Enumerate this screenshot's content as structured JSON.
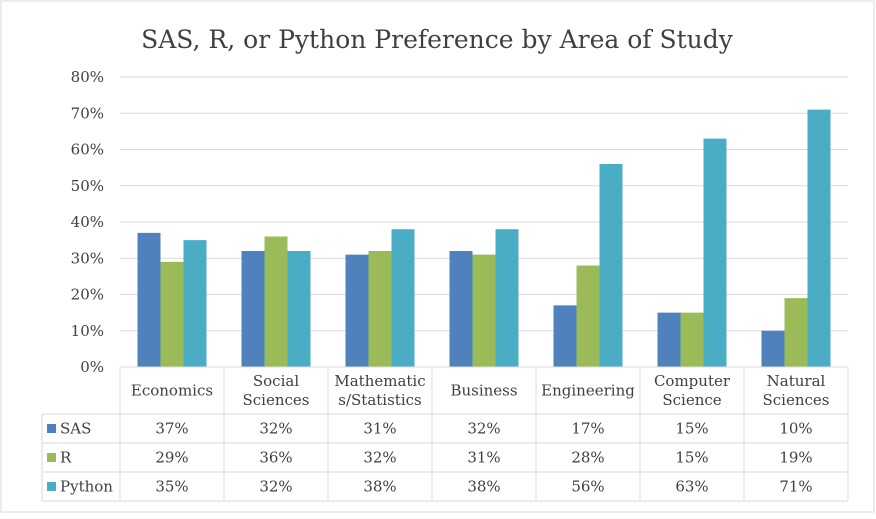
{
  "chart_data": {
    "type": "bar",
    "title": "SAS, R, or Python Preference by Area of Study",
    "categories": [
      "Economics",
      "Social Sciences",
      "Mathematics/Statistics",
      "Business",
      "Engineering",
      "Computer Science",
      "Natural Sciences"
    ],
    "category_lines": [
      [
        "Economics"
      ],
      [
        "Social",
        "Sciences"
      ],
      [
        "Mathematic",
        "s/Statistics"
      ],
      [
        "Business"
      ],
      [
        "Engineering"
      ],
      [
        "Computer",
        "Science"
      ],
      [
        "Natural",
        "Sciences"
      ]
    ],
    "series": [
      {
        "name": "SAS",
        "color": "#4f81bd",
        "values": [
          37,
          32,
          31,
          32,
          17,
          15,
          10
        ],
        "labels": [
          "37%",
          "32%",
          "31%",
          "32%",
          "17%",
          "15%",
          "10%"
        ]
      },
      {
        "name": "R",
        "color": "#9bbb59",
        "values": [
          29,
          36,
          32,
          31,
          28,
          15,
          19
        ],
        "labels": [
          "29%",
          "36%",
          "32%",
          "31%",
          "28%",
          "15%",
          "19%"
        ]
      },
      {
        "name": "Python",
        "color": "#4bacc6",
        "values": [
          35,
          32,
          38,
          38,
          56,
          63,
          71
        ],
        "labels": [
          "35%",
          "32%",
          "38%",
          "38%",
          "56%",
          "63%",
          "71%"
        ]
      }
    ],
    "y_ticks": [
      "0%",
      "10%",
      "20%",
      "30%",
      "40%",
      "50%",
      "60%",
      "70%",
      "80%"
    ],
    "ylim": [
      0,
      80
    ],
    "grid": true,
    "legend": "data-table"
  }
}
